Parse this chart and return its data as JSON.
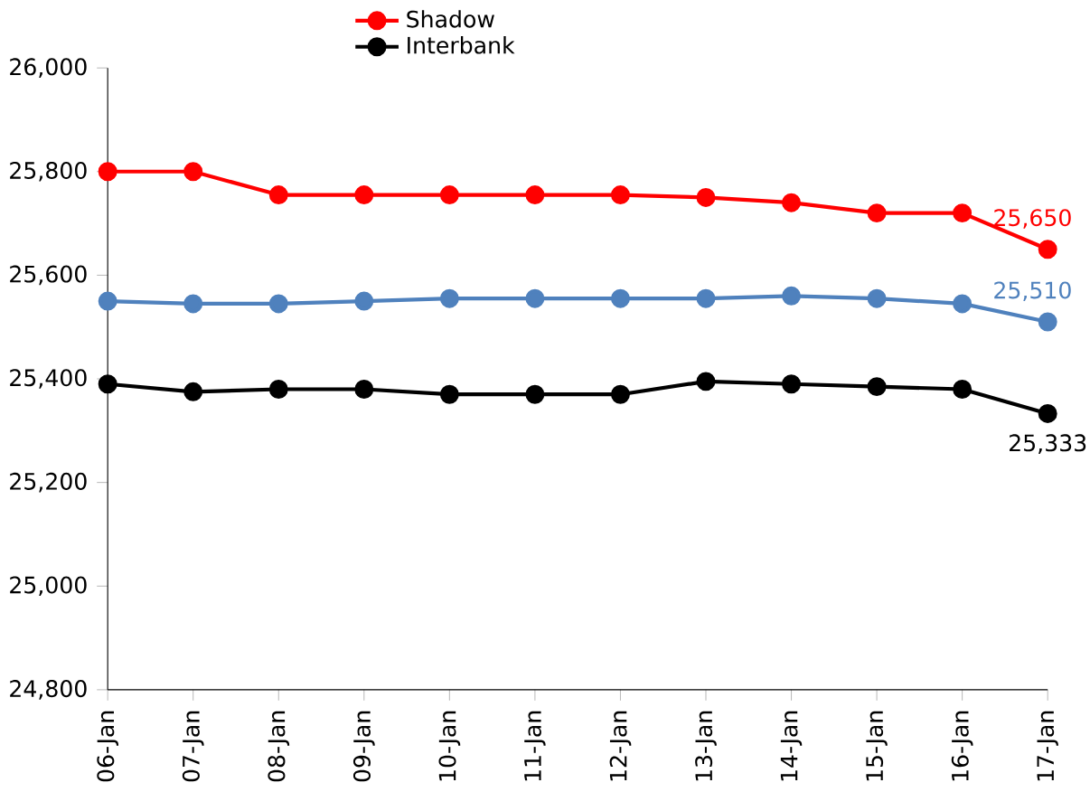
{
  "chart_data": {
    "type": "line",
    "categories": [
      "06-Jan",
      "07-Jan",
      "08-Jan",
      "09-Jan",
      "10-Jan",
      "11-Jan",
      "12-Jan",
      "13-Jan",
      "14-Jan",
      "15-Jan",
      "16-Jan",
      "17-Jan"
    ],
    "series": [
      {
        "color": "#4f81bd",
        "values": [
          25550,
          25545,
          25545,
          25550,
          25555,
          25555,
          25555,
          25555,
          25560,
          25555,
          25545,
          25510
        ],
        "value_labels": [
          null,
          null,
          null,
          null,
          null,
          null,
          null,
          null,
          null,
          null,
          null,
          "25,510"
        ]
      },
      {
        "name": "Shadow",
        "color": "#ff0000",
        "values": [
          25800,
          25800,
          25755,
          25755,
          25755,
          25755,
          25755,
          25750,
          25740,
          25720,
          25720,
          25650
        ],
        "value_labels": [
          null,
          null,
          null,
          null,
          null,
          null,
          null,
          null,
          null,
          null,
          null,
          "25,650"
        ]
      },
      {
        "name": "Interbank",
        "color": "#000000",
        "values": [
          25390,
          25375,
          25380,
          25380,
          25370,
          25370,
          25370,
          25395,
          25390,
          25385,
          25380,
          25333
        ],
        "value_labels": [
          null,
          null,
          null,
          null,
          null,
          null,
          null,
          null,
          null,
          null,
          null,
          "25,333"
        ]
      }
    ],
    "ylim": [
      24800,
      26000
    ],
    "yticks": [
      {
        "value": 24800,
        "label": "24,800"
      },
      {
        "value": 25000,
        "label": "25,000"
      },
      {
        "value": 25200,
        "label": "25,200"
      },
      {
        "value": 25400,
        "label": "25,400"
      },
      {
        "value": 25600,
        "label": "25,600"
      },
      {
        "value": 25800,
        "label": "25,800"
      },
      {
        "value": 26000,
        "label": "26,000"
      }
    ],
    "grid": false,
    "legend": "top",
    "marker": "circle",
    "line_style": "solid"
  }
}
